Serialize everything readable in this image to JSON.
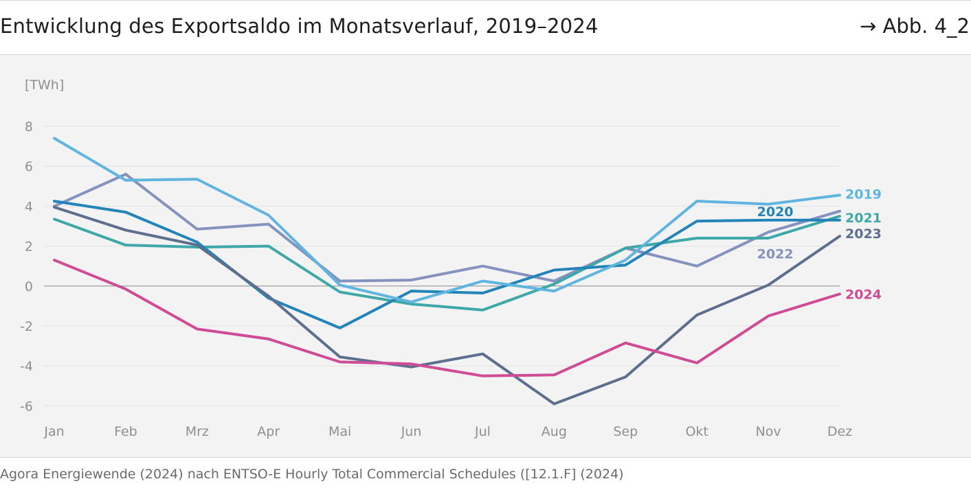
{
  "header": {
    "title": "Entwicklung des Exportsaldo im Monatsverlauf, 2019–2024",
    "figure_ref": "→ Abb. 4_2"
  },
  "footer": {
    "source": "Agora Energiewende (2024) nach ENTSO-E Hourly Total Commercial Schedules ([12.1.F] (2024)"
  },
  "chart_data": {
    "type": "line",
    "title": "Entwicklung des Exportsaldo im Monatsverlauf, 2019–2024",
    "ylabel": "[TWh]",
    "xlabel": "",
    "ylim": [
      -6,
      8
    ],
    "yticks": [
      8,
      6,
      4,
      2,
      0,
      -2,
      -4,
      -6
    ],
    "ytick_labels": [
      "8",
      "6",
      "4",
      "2",
      "0",
      "-2",
      "-4",
      "-6"
    ],
    "grid": true,
    "categories": [
      "Jan",
      "Feb",
      "Mrz",
      "Apr",
      "Mai",
      "Jun",
      "Jul",
      "Aug",
      "Sep",
      "Okt",
      "Nov",
      "Dez"
    ],
    "series": [
      {
        "name": "2022",
        "color": "#8592bd",
        "label_placement": "below-end",
        "values": [
          4.0,
          5.6,
          2.85,
          3.1,
          0.25,
          0.3,
          1.0,
          0.25,
          1.9,
          1.0,
          2.7,
          3.75
        ]
      },
      {
        "name": "2021",
        "color": "#3ea8a8",
        "label_placement": "end",
        "values": [
          3.35,
          2.05,
          1.95,
          2.0,
          -0.3,
          -0.9,
          -1.2,
          0.1,
          1.9,
          2.4,
          2.4,
          3.5
        ]
      },
      {
        "name": "2020",
        "color": "#2284b8",
        "label_placement": "above-end",
        "values": [
          4.25,
          3.7,
          2.2,
          -0.6,
          -2.1,
          -0.25,
          -0.35,
          0.8,
          1.05,
          3.25,
          3.3,
          3.3
        ]
      },
      {
        "name": "2023",
        "color": "#5d6e8e",
        "label_placement": "end",
        "values": [
          3.95,
          2.8,
          2.05,
          -0.5,
          -3.55,
          -4.05,
          -3.4,
          -5.9,
          -4.55,
          -1.45,
          0.05,
          2.5
        ]
      },
      {
        "name": "2024",
        "color": "#d04b95",
        "label_placement": "end",
        "values": [
          1.3,
          -0.15,
          -2.15,
          -2.65,
          -3.8,
          -3.9,
          -4.5,
          -4.45,
          -2.85,
          -3.85,
          -1.5,
          -0.4
        ]
      },
      {
        "name": "2019",
        "color": "#5fb5df",
        "label_placement": "end",
        "values": [
          7.4,
          5.3,
          5.35,
          3.55,
          0.05,
          -0.8,
          0.25,
          -0.25,
          1.3,
          4.25,
          4.1,
          4.55
        ]
      }
    ]
  }
}
